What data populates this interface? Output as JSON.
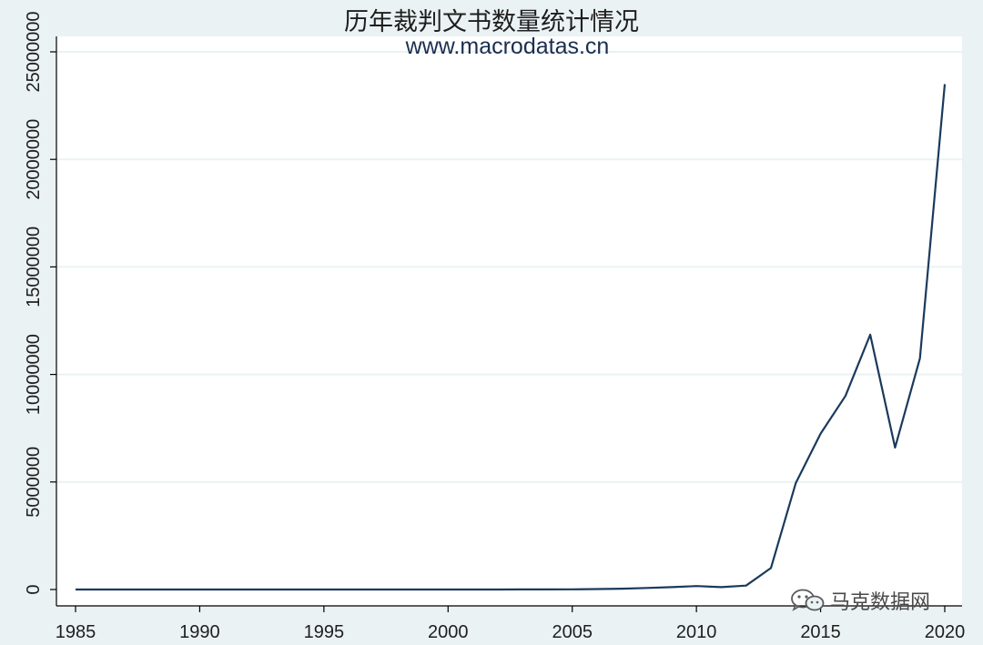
{
  "title": "历年裁判文书数量统计情况",
  "subtitle": "www.macrodatas.cn",
  "watermark": {
    "text": "马克数据网",
    "icon": "wechat-icon"
  },
  "colors": {
    "background": "#eaf2f3",
    "plot_area": "#ffffff",
    "line": "#1a3a5c",
    "grid": "#eaf2f3"
  },
  "chart_data": {
    "type": "line",
    "title": "历年裁判文书数量统计情况",
    "subtitle": "www.macrodatas.cn",
    "xlabel": "",
    "ylabel": "",
    "xlim": [
      1985,
      2020
    ],
    "ylim": [
      0,
      25000000
    ],
    "x_ticks": [
      1985,
      1990,
      1995,
      2000,
      2005,
      2010,
      2015,
      2020
    ],
    "y_ticks": [
      0,
      5000000,
      10000000,
      15000000,
      20000000,
      25000000
    ],
    "y_tick_labels": [
      "0",
      "5000000",
      "10000000",
      "15000000",
      "20000000",
      "25000000"
    ],
    "grid": true,
    "legend": "none",
    "series": [
      {
        "x": [
          1985,
          1986,
          1987,
          1988,
          1989,
          1990,
          1991,
          1992,
          1993,
          1994,
          1995,
          1996,
          1997,
          1998,
          1999,
          2000,
          2001,
          2002,
          2003,
          2004,
          2005,
          2006,
          2007,
          2008,
          2009,
          2010,
          2011,
          2012,
          2013,
          2014,
          2015,
          2016,
          2017,
          2018,
          2019,
          2020
        ],
        "values": [
          0,
          0,
          0,
          0,
          0,
          0,
          0,
          0,
          0,
          0,
          0,
          0,
          0,
          0,
          0,
          0,
          1000,
          2000,
          3000,
          5000,
          10000,
          20000,
          40000,
          70000,
          110000,
          160000,
          110000,
          180000,
          1000000,
          4950000,
          7250000,
          9000000,
          11850000,
          6600000,
          10750000,
          23500000
        ]
      }
    ]
  }
}
